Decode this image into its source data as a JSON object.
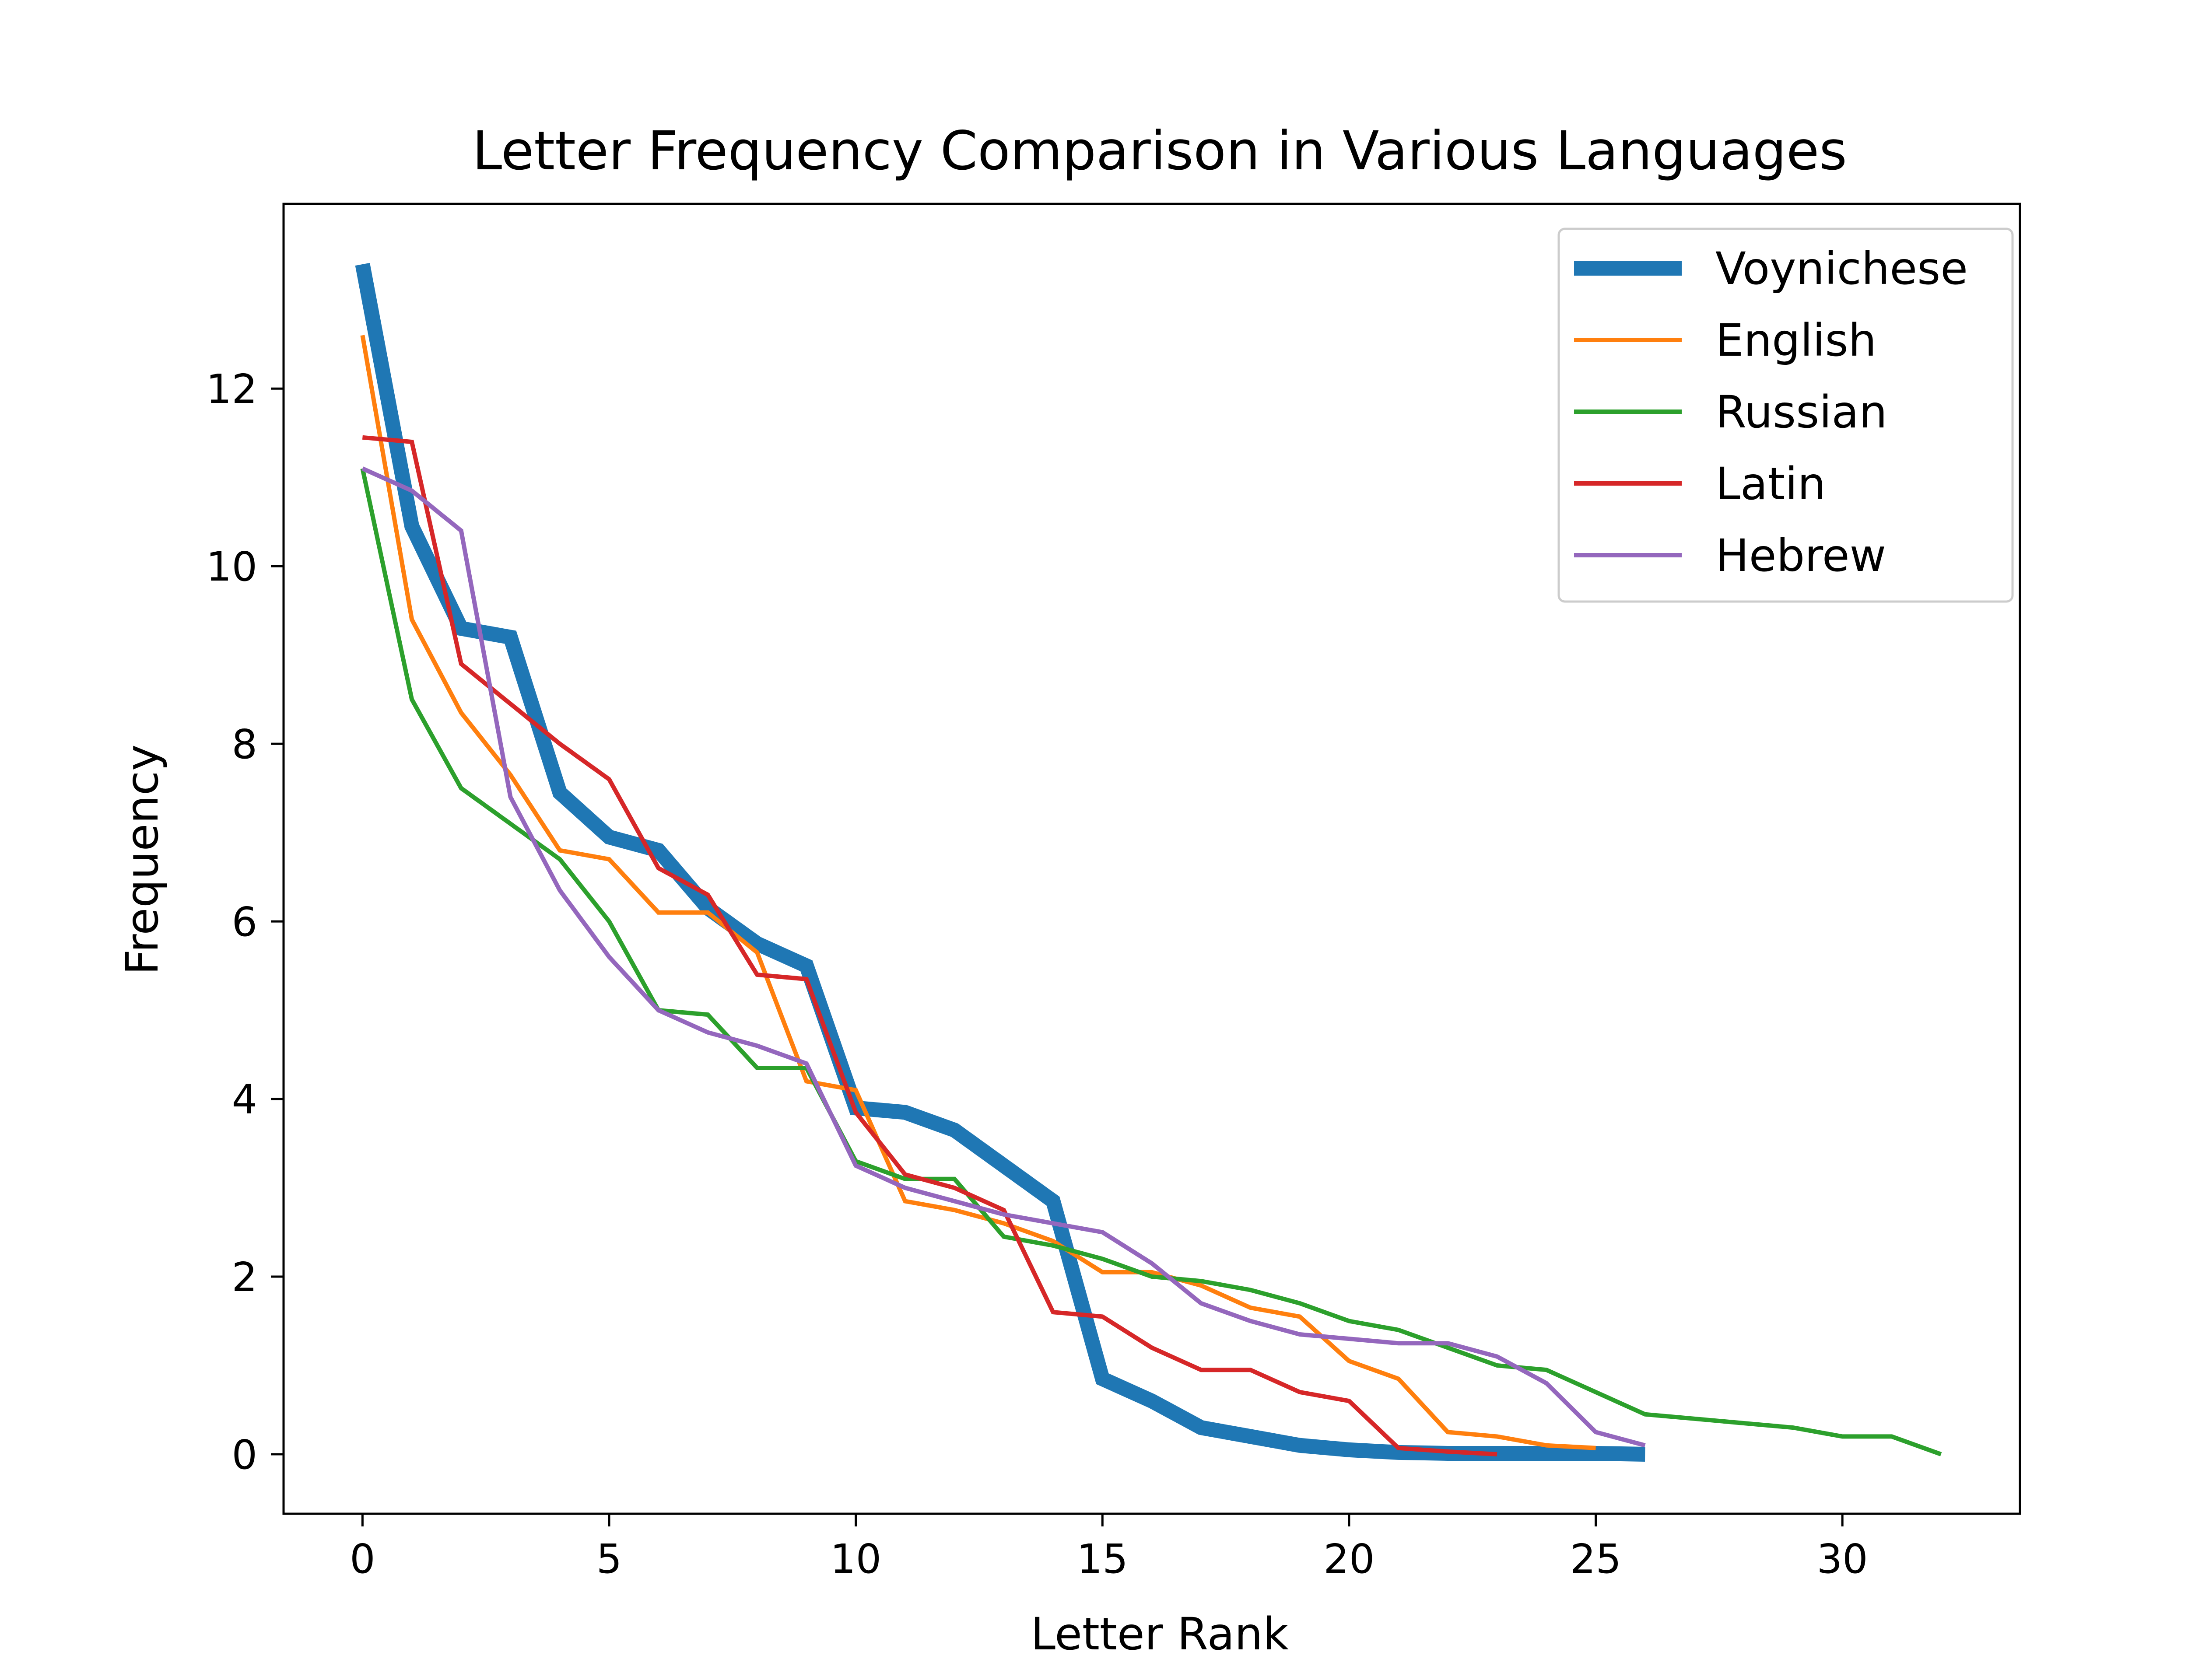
{
  "chart_data": {
    "type": "line",
    "title": "Letter Frequency Comparison in Various Languages",
    "xlabel": "Letter Rank",
    "ylabel": "Frequency",
    "xlim": [
      -1.6,
      33.6
    ],
    "ylim": [
      -0.67,
      14.08
    ],
    "xticks": [
      0,
      5,
      10,
      15,
      20,
      25,
      30
    ],
    "yticks": [
      0,
      2,
      4,
      6,
      8,
      10,
      12
    ],
    "grid": false,
    "legend_position": "top-right",
    "series": [
      {
        "name": "Voynichese",
        "color": "#1f77b4",
        "emphasis": "thick",
        "values": [
          13.4,
          10.45,
          9.3,
          9.2,
          7.45,
          6.95,
          6.8,
          6.15,
          5.75,
          5.5,
          3.9,
          3.85,
          3.65,
          3.25,
          2.85,
          0.85,
          0.6,
          0.3,
          0.2,
          0.1,
          0.05,
          0.02,
          0.01,
          0.01,
          0.01,
          0.01,
          0.0
        ]
      },
      {
        "name": "English",
        "color": "#ff7f0e",
        "values": [
          12.6,
          9.4,
          8.35,
          7.65,
          6.8,
          6.7,
          6.1,
          6.1,
          5.65,
          4.2,
          4.1,
          2.85,
          2.75,
          2.6,
          2.4,
          2.05,
          2.05,
          1.9,
          1.65,
          1.55,
          1.05,
          0.85,
          0.25,
          0.2,
          0.1,
          0.07
        ]
      },
      {
        "name": "Russian",
        "color": "#2ca02c",
        "values": [
          11.1,
          8.5,
          7.5,
          7.1,
          6.7,
          6.0,
          5.0,
          4.95,
          4.35,
          4.35,
          3.3,
          3.1,
          3.1,
          2.45,
          2.35,
          2.2,
          2.0,
          1.95,
          1.85,
          1.7,
          1.5,
          1.4,
          1.2,
          1.0,
          0.95,
          0.7,
          0.45,
          0.4,
          0.35,
          0.3,
          0.2,
          0.2,
          0.0
        ]
      },
      {
        "name": "Latin",
        "color": "#d62728",
        "values": [
          11.45,
          11.4,
          8.9,
          8.45,
          8.0,
          7.6,
          6.6,
          6.3,
          5.4,
          5.35,
          3.85,
          3.15,
          3.0,
          2.75,
          1.6,
          1.55,
          1.2,
          0.95,
          0.95,
          0.7,
          0.6,
          0.07,
          0.03,
          0.0
        ]
      },
      {
        "name": "Hebrew",
        "color": "#9467bd",
        "values": [
          11.1,
          10.85,
          10.4,
          7.4,
          6.35,
          5.6,
          5.0,
          4.75,
          4.6,
          4.4,
          3.25,
          3.0,
          2.85,
          2.7,
          2.6,
          2.5,
          2.15,
          1.7,
          1.5,
          1.35,
          1.3,
          1.25,
          1.25,
          1.1,
          0.8,
          0.25,
          0.1
        ]
      }
    ]
  }
}
